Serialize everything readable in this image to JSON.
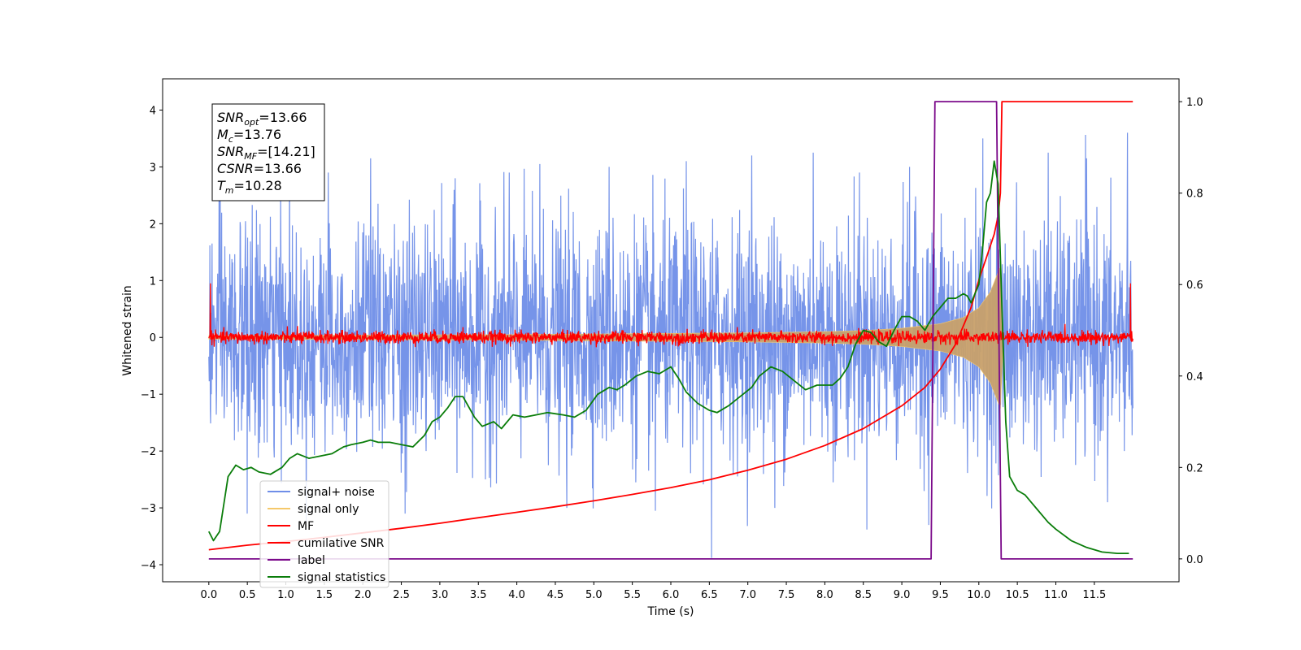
{
  "chart_data": {
    "type": "line",
    "xlabel": "Time (s)",
    "ylabel": "Whitened strain",
    "xlim": [
      -0.6,
      12.6
    ],
    "ylim": [
      -4.3,
      4.55
    ],
    "ylim_right": [
      -0.05,
      1.05
    ],
    "x_ticks": [
      0.0,
      0.5,
      1.0,
      1.5,
      2.0,
      2.5,
      3.0,
      3.5,
      4.0,
      4.5,
      5.0,
      5.5,
      6.0,
      6.5,
      7.0,
      7.5,
      8.0,
      8.5,
      9.0,
      9.5,
      10.0,
      10.5,
      11.0,
      11.5
    ],
    "x_tick_labels": [
      "0.0",
      "0.5",
      "1.0",
      "1.5",
      "2.0",
      "2.5",
      "3.0",
      "3.5",
      "4.0",
      "4.5",
      "5.0",
      "5.5",
      "6.0",
      "6.5",
      "7.0",
      "7.5",
      "8.0",
      "8.5",
      "9.0",
      "9.5",
      "10.0",
      "10.5",
      "11.0",
      "11.5"
    ],
    "y_ticks": [
      -4,
      -3,
      -2,
      -1,
      0,
      1,
      2,
      3,
      4
    ],
    "y_tick_labels": [
      "−4",
      "−3",
      "−2",
      "−1",
      "0",
      "1",
      "2",
      "3",
      "4"
    ],
    "y_right_ticks": [
      0.0,
      0.2,
      0.4,
      0.6,
      0.8,
      1.0
    ],
    "y_right_tick_labels": [
      "0.0",
      "0.2",
      "0.4",
      "0.6",
      "0.8",
      "1.0"
    ],
    "grid": false,
    "legend_position": "lower-left",
    "annotation": {
      "lines": [
        {
          "base": "SNR",
          "sub": "opt",
          "value": "=13.66"
        },
        {
          "base": "M",
          "sub": "c",
          "value": "=13.76"
        },
        {
          "base": "SNR",
          "sub": "MF",
          "value": "=[14.21]"
        },
        {
          "base": "CSNR",
          "sub": "",
          "value": "=13.66"
        },
        {
          "base": "T",
          "sub": "m",
          "value": "=10.28"
        }
      ]
    },
    "merger_time": 10.28,
    "series": [
      {
        "name": "signal+ noise",
        "color": "#6f8ee8",
        "axis": "left",
        "kind": "noise",
        "sigma": 1.0,
        "peaks": [
          [
            0.15,
            2.9
          ],
          [
            0.5,
            -3.1
          ],
          [
            1.05,
            3.35
          ],
          [
            1.55,
            2.9
          ],
          [
            2.1,
            3.15
          ],
          [
            2.55,
            -3.1
          ],
          [
            3.2,
            2.8
          ],
          [
            3.9,
            2.9
          ],
          [
            4.3,
            3.05
          ],
          [
            4.65,
            -3.0
          ],
          [
            5.2,
            3.0
          ],
          [
            5.8,
            -3.05
          ],
          [
            6.2,
            3.1
          ],
          [
            6.53,
            -3.88
          ],
          [
            7.05,
            3.2
          ],
          [
            7.35,
            -3.0
          ],
          [
            7.85,
            3.25
          ],
          [
            8.45,
            2.9
          ],
          [
            9.1,
            3.0
          ],
          [
            9.35,
            -3.3
          ],
          [
            10.05,
            3.5
          ],
          [
            10.9,
            3.25
          ],
          [
            11.4,
            3.15
          ],
          [
            11.67,
            -2.9
          ],
          [
            11.93,
            3.6
          ]
        ]
      },
      {
        "name": "signal only",
        "color": "#f5c86a",
        "axis": "left",
        "kind": "chirp_envelope",
        "envelope": {
          "t": [
            0.0,
            2.0,
            4.0,
            6.0,
            7.0,
            8.0,
            8.5,
            9.0,
            9.5,
            9.8,
            10.0,
            10.15,
            10.28,
            10.32
          ],
          "amp": [
            0.03,
            0.04,
            0.05,
            0.07,
            0.08,
            0.1,
            0.12,
            0.16,
            0.24,
            0.35,
            0.52,
            0.8,
            1.25,
            0.0
          ]
        }
      },
      {
        "name": "MF",
        "color": "#ff0000",
        "axis": "left",
        "kind": "noise",
        "sigma": 0.055,
        "peaks": [
          [
            0.02,
            0.95
          ],
          [
            11.97,
            0.95
          ],
          [
            1.15,
            0.2
          ],
          [
            3.3,
            0.18
          ],
          [
            6.1,
            -0.16
          ],
          [
            8.7,
            0.15
          ]
        ]
      },
      {
        "name": "cumilative SNR",
        "color": "#ff0000",
        "axis": "right",
        "x": [
          0.0,
          0.5,
          1.0,
          1.5,
          2.0,
          2.5,
          3.0,
          3.5,
          4.0,
          4.5,
          5.0,
          5.5,
          6.0,
          6.5,
          7.0,
          7.5,
          8.0,
          8.5,
          9.0,
          9.3,
          9.5,
          9.7,
          9.9,
          10.0,
          10.1,
          10.2,
          10.25,
          10.28,
          10.3,
          12.0
        ],
        "y": [
          0.02,
          0.03,
          0.038,
          0.047,
          0.057,
          0.067,
          0.078,
          0.09,
          0.102,
          0.114,
          0.127,
          0.141,
          0.156,
          0.173,
          0.194,
          0.218,
          0.248,
          0.285,
          0.335,
          0.375,
          0.415,
          0.47,
          0.55,
          0.61,
          0.66,
          0.71,
          0.75,
          0.8,
          1.0,
          1.0
        ]
      },
      {
        "name": "label",
        "color": "#7b0a8a",
        "axis": "right",
        "x": [
          0.0,
          9.38,
          9.43,
          10.23,
          10.29,
          12.0
        ],
        "y": [
          0.0,
          0.0,
          1.0,
          1.0,
          0.0,
          0.0
        ]
      },
      {
        "name": "signal statistics",
        "color": "#0a7d0a",
        "axis": "right",
        "x": [
          0.0,
          0.06,
          0.14,
          0.25,
          0.35,
          0.45,
          0.55,
          0.65,
          0.8,
          0.95,
          1.05,
          1.15,
          1.3,
          1.45,
          1.6,
          1.75,
          1.85,
          2.0,
          2.1,
          2.2,
          2.35,
          2.5,
          2.65,
          2.8,
          2.9,
          3.0,
          3.1,
          3.2,
          3.3,
          3.45,
          3.55,
          3.7,
          3.8,
          3.95,
          4.1,
          4.25,
          4.4,
          4.6,
          4.75,
          4.9,
          5.05,
          5.2,
          5.3,
          5.4,
          5.55,
          5.7,
          5.85,
          6.0,
          6.1,
          6.2,
          6.35,
          6.5,
          6.6,
          6.75,
          6.9,
          7.05,
          7.15,
          7.3,
          7.45,
          7.6,
          7.75,
          7.9,
          8.0,
          8.1,
          8.2,
          8.3,
          8.4,
          8.5,
          8.6,
          8.7,
          8.8,
          8.9,
          9.0,
          9.1,
          9.2,
          9.3,
          9.4,
          9.5,
          9.6,
          9.7,
          9.8,
          9.85,
          9.9,
          10.0,
          10.05,
          10.1,
          10.15,
          10.2,
          10.25,
          10.3,
          10.35,
          10.4,
          10.5,
          10.6,
          10.75,
          10.9,
          11.0,
          11.2,
          11.4,
          11.6,
          11.8,
          11.95
        ],
        "y": [
          0.06,
          0.04,
          0.06,
          0.18,
          0.205,
          0.195,
          0.2,
          0.19,
          0.185,
          0.2,
          0.22,
          0.23,
          0.22,
          0.225,
          0.23,
          0.245,
          0.25,
          0.255,
          0.26,
          0.255,
          0.255,
          0.25,
          0.245,
          0.27,
          0.3,
          0.31,
          0.33,
          0.355,
          0.355,
          0.31,
          0.29,
          0.3,
          0.285,
          0.315,
          0.31,
          0.315,
          0.32,
          0.315,
          0.31,
          0.325,
          0.36,
          0.375,
          0.37,
          0.38,
          0.4,
          0.41,
          0.405,
          0.42,
          0.395,
          0.365,
          0.34,
          0.325,
          0.32,
          0.335,
          0.355,
          0.375,
          0.4,
          0.42,
          0.41,
          0.39,
          0.37,
          0.38,
          0.38,
          0.38,
          0.395,
          0.42,
          0.47,
          0.5,
          0.495,
          0.475,
          0.465,
          0.5,
          0.53,
          0.53,
          0.52,
          0.5,
          0.53,
          0.55,
          0.57,
          0.57,
          0.58,
          0.575,
          0.56,
          0.6,
          0.68,
          0.78,
          0.8,
          0.87,
          0.82,
          0.55,
          0.3,
          0.18,
          0.15,
          0.14,
          0.11,
          0.08,
          0.065,
          0.04,
          0.025,
          0.015,
          0.012,
          0.012
        ]
      }
    ]
  }
}
